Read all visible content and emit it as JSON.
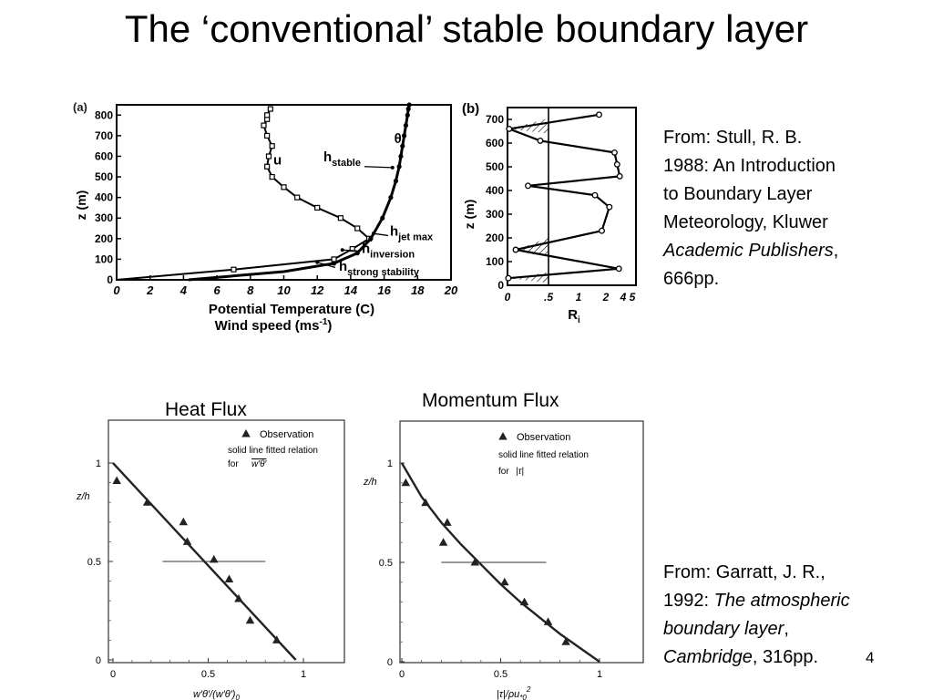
{
  "slide": {
    "title": "The ‘conventional’ stable boundary layer",
    "slide_number": "4"
  },
  "citations": {
    "stull": {
      "line1": "From: Stull, R. B.",
      "line2": "1988: An Introduction",
      "line3": "to Boundary Layer",
      "line4": "Meteorology, Kluwer",
      "line5_italic": "Academic Publishers",
      "line5_rest": ",",
      "line6": "666pp."
    },
    "garratt": {
      "line1": "From: Garratt, J. R.,",
      "line2_plain": "1992: ",
      "line2_italic": "The atmospheric",
      "line3_italic": "boundary layer",
      "line3_rest": ",",
      "line4_italic": "Cambridge",
      "line4_rest": ", 316pp."
    }
  },
  "chart_data": [
    {
      "type": "line",
      "panel": "(a)",
      "xlabel": "Potential Temperature (C)",
      "xlabel2": "Wind speed (ms",
      "xlabel2_sup": "-1",
      "xlabel2_close": ")",
      "ylabel": "z (m)",
      "xlim": [
        0,
        20
      ],
      "ylim": [
        0,
        850
      ],
      "xticks": [
        0,
        2,
        4,
        6,
        8,
        10,
        12,
        14,
        16,
        18,
        20
      ],
      "yticks": [
        0,
        100,
        200,
        300,
        400,
        500,
        600,
        700,
        800
      ],
      "series": [
        {
          "name": "u",
          "x": [
            0,
            7,
            13,
            14.1,
            15.1,
            14.4,
            13.4,
            12.0,
            10.8,
            10.0,
            9.3,
            9.0,
            9.1,
            9.3,
            9.0,
            8.8,
            9.0,
            9.0,
            9.2
          ],
          "y": [
            0,
            50,
            100,
            150,
            200,
            250,
            300,
            350,
            400,
            450,
            500,
            550,
            600,
            650,
            700,
            750,
            780,
            800,
            830
          ]
        },
        {
          "name": "θ",
          "x": [
            4.3,
            10,
            13,
            14.4,
            15.2,
            15.9,
            16.4,
            16.7,
            16.9,
            17.0,
            17.1,
            17.2,
            17.3,
            17.4,
            17.45,
            17.5
          ],
          "y": [
            0,
            40,
            80,
            130,
            200,
            300,
            400,
            480,
            550,
            600,
            650,
            700,
            750,
            800,
            830,
            850
          ]
        }
      ],
      "annotations": [
        {
          "text": "h",
          "sub": "stable",
          "z": 500
        },
        {
          "text": "h",
          "sub": "jet max",
          "z": 225
        },
        {
          "text": "h",
          "sub": "inversion",
          "z": 140
        },
        {
          "text": "h",
          "sub": "strong stability",
          "z": 80
        }
      ]
    },
    {
      "type": "line",
      "panel": "(b)",
      "xlabel": "R",
      "xlabel_sub": "i",
      "ylabel": "z (m)",
      "xlim": [
        0,
        5
      ],
      "ylim": [
        0,
        750
      ],
      "xticks": [
        "0",
        ".5",
        "1",
        "2",
        "4",
        "5"
      ],
      "yticks": [
        0,
        100,
        200,
        300,
        400,
        500,
        600,
        700
      ],
      "reference_line": 0.5,
      "series": [
        {
          "name": "Ri",
          "x": [
            1.75,
            0.02,
            0.4,
            3.0,
            3.3,
            3.6,
            0.25,
            1.6,
            2.4,
            1.85,
            0.1,
            3.5,
            0.01
          ],
          "y": [
            720,
            660,
            610,
            560,
            510,
            460,
            420,
            380,
            330,
            230,
            150,
            70,
            30
          ]
        }
      ]
    },
    {
      "type": "scatter",
      "title": "Heat Flux",
      "xlabel": "w′θ′/(w′θ′)",
      "xlabel_sub": "0",
      "ylabel": "z/h",
      "xlim": [
        0,
        1
      ],
      "ylim": [
        0,
        1
      ],
      "xticks": [
        "0",
        "0.5",
        "1"
      ],
      "yticks": [
        "0",
        "0.5",
        "1"
      ],
      "legend": {
        "observation": "Observation",
        "line1": "solid line fitted relation",
        "line2": "for",
        "symbol": "w′θ′"
      },
      "series": [
        {
          "name": "Observation",
          "x": [
            0.02,
            0.18,
            0.37,
            0.39,
            0.53,
            0.61,
            0.66,
            0.72,
            0.86
          ],
          "y": [
            0.91,
            0.8,
            0.7,
            0.6,
            0.51,
            0.41,
            0.31,
            0.2,
            0.1
          ]
        },
        {
          "name": "fit",
          "x": [
            0,
            0.96
          ],
          "y": [
            1,
            0
          ]
        }
      ],
      "hline": {
        "y": 0.5,
        "x": [
          0.26,
          0.8
        ]
      }
    },
    {
      "type": "scatter",
      "title": "Momentum Flux",
      "xlabel": "|τ|/ρu",
      "xlabel_sub": "*0",
      "xlabel_sup": "2",
      "ylabel": "z/h",
      "xlim": [
        0,
        1
      ],
      "ylim": [
        0,
        1
      ],
      "xticks": [
        "0",
        "0.5",
        "1"
      ],
      "yticks": [
        "0",
        "0.5",
        "1"
      ],
      "legend": {
        "observation": "Observation",
        "line1": "solid line fitted relation",
        "line2": "for",
        "symbol": "|τ|"
      },
      "series": [
        {
          "name": "Observation",
          "x": [
            0.02,
            0.12,
            0.21,
            0.23,
            0.37,
            0.52,
            0.62,
            0.74,
            0.83
          ],
          "y": [
            0.9,
            0.8,
            0.6,
            0.7,
            0.5,
            0.4,
            0.3,
            0.2,
            0.1
          ]
        },
        {
          "name": "fit",
          "x": [
            0,
            0.1,
            0.2,
            0.3,
            0.4,
            0.5,
            0.6,
            0.7,
            0.8,
            0.9,
            1.0
          ],
          "y": [
            1.0,
            0.83,
            0.7,
            0.59,
            0.49,
            0.39,
            0.3,
            0.22,
            0.14,
            0.07,
            0
          ]
        }
      ],
      "hline": {
        "y": 0.5,
        "x": [
          0.2,
          0.73
        ]
      }
    }
  ]
}
